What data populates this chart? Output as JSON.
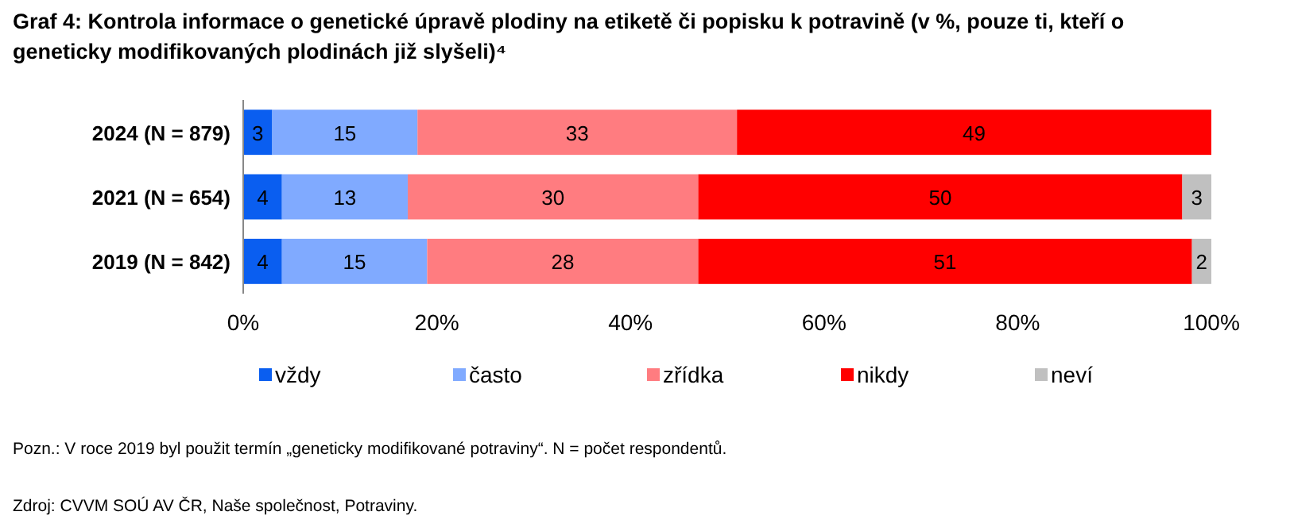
{
  "chart_data": {
    "type": "bar",
    "orientation": "horizontal",
    "stacked": true,
    "title": "Graf 4: Kontrola informace o genetické úpravě plodiny na etiketě či popisku k potravině (v %, pouze ti, kteří o geneticky modifikovaných plodinách již slyšeli)⁴",
    "categories": [
      "2024 (N = 879)",
      "2021 (N = 654)",
      "2019 (N = 842)"
    ],
    "series": [
      {
        "name": "vždy",
        "color": "#0a5ef0",
        "values": [
          3,
          4,
          4
        ]
      },
      {
        "name": "často",
        "color": "#80aaff",
        "values": [
          15,
          13,
          15
        ]
      },
      {
        "name": "zřídka",
        "color": "#ff7c80",
        "values": [
          33,
          30,
          28
        ]
      },
      {
        "name": "nikdy",
        "color": "#ff0000",
        "values": [
          49,
          50,
          51
        ]
      },
      {
        "name": "neví",
        "color": "#c0c0c0",
        "values": [
          null,
          3,
          2
        ]
      }
    ],
    "xlim": [
      0,
      100
    ],
    "xticks": [
      {
        "value": 0,
        "label": "0%"
      },
      {
        "value": 20,
        "label": "20%"
      },
      {
        "value": 40,
        "label": "40%"
      },
      {
        "value": 60,
        "label": "60%"
      },
      {
        "value": 80,
        "label": "80%"
      },
      {
        "value": 100,
        "label": "100%"
      }
    ],
    "data_labels": true,
    "legend": "bottom",
    "grid": false,
    "annotations": [
      "Pozn.: V roce 2019 byl použit termín „geneticky modifikované potraviny“. N = počet respondentů.",
      "Zdroj: CVVM SOÚ AV ČR, Naše společnost, Potraviny."
    ]
  }
}
